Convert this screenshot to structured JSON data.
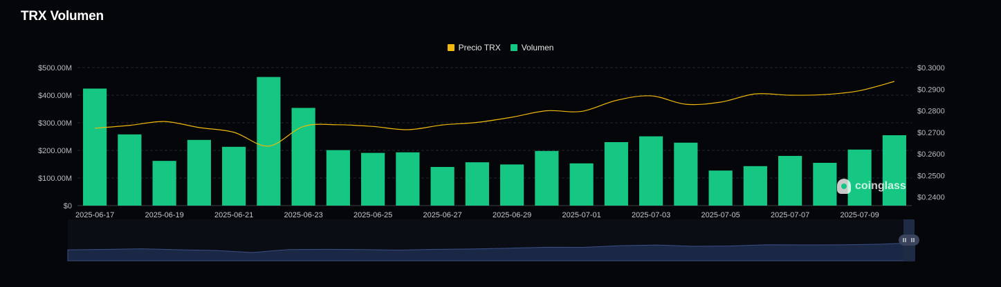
{
  "title": "TRX Volumen",
  "legend": [
    {
      "label": "Precio TRX",
      "color": "#f0b90b"
    },
    {
      "label": "Volumen",
      "color": "#16c784"
    }
  ],
  "watermark": "coinglass",
  "chart_data": {
    "type": "bar",
    "title": "TRX Volumen",
    "categories": [
      "2025-06-17",
      "2025-06-18",
      "2025-06-19",
      "2025-06-20",
      "2025-06-21",
      "2025-06-22",
      "2025-06-23",
      "2025-06-24",
      "2025-06-25",
      "2025-06-26",
      "2025-06-27",
      "2025-06-28",
      "2025-06-29",
      "2025-06-30",
      "2025-07-01",
      "2025-07-02",
      "2025-07-03",
      "2025-07-04",
      "2025-07-05",
      "2025-07-06",
      "2025-07-07",
      "2025-07-08",
      "2025-07-09",
      "2025-07-10"
    ],
    "x_tick_labels": [
      "2025-06-17",
      "2025-06-19",
      "2025-06-21",
      "2025-06-23",
      "2025-06-25",
      "2025-06-27",
      "2025-06-29",
      "2025-07-01",
      "2025-07-03",
      "2025-07-05",
      "2025-07-07",
      "2025-07-09"
    ],
    "series": [
      {
        "name": "Volumen",
        "type": "bar",
        "axis": "left",
        "color": "#16c784",
        "values": [
          424,
          258,
          162,
          238,
          213,
          466,
          354,
          201,
          191,
          193,
          140,
          157,
          149,
          198,
          153,
          230,
          251,
          228,
          127,
          143,
          180,
          155,
          203,
          255
        ]
      },
      {
        "name": "Precio TRX",
        "type": "line",
        "axis": "right",
        "color": "#f0b90b",
        "values": [
          0.2719,
          0.2732,
          0.275,
          0.2722,
          0.27,
          0.2636,
          0.2727,
          0.2735,
          0.2727,
          0.2712,
          0.2734,
          0.2746,
          0.277,
          0.28,
          0.2797,
          0.2848,
          0.2869,
          0.283,
          0.284,
          0.2878,
          0.2872,
          0.2875,
          0.2893,
          0.2936
        ]
      }
    ],
    "y_left": {
      "ticks": [
        "$0",
        "$100.00M",
        "$200.00M",
        "$300.00M",
        "$400.00M",
        "$500.00M"
      ],
      "range": [
        0,
        500
      ],
      "unit": "M USD"
    },
    "y_right": {
      "ticks": [
        "$0.2400",
        "$0.2500",
        "$0.2600",
        "$0.2700",
        "$0.2800",
        "$0.2900",
        "$0.3000"
      ],
      "range": [
        0.236,
        0.3
      ]
    },
    "grid": true,
    "legend_position": "top-center"
  }
}
